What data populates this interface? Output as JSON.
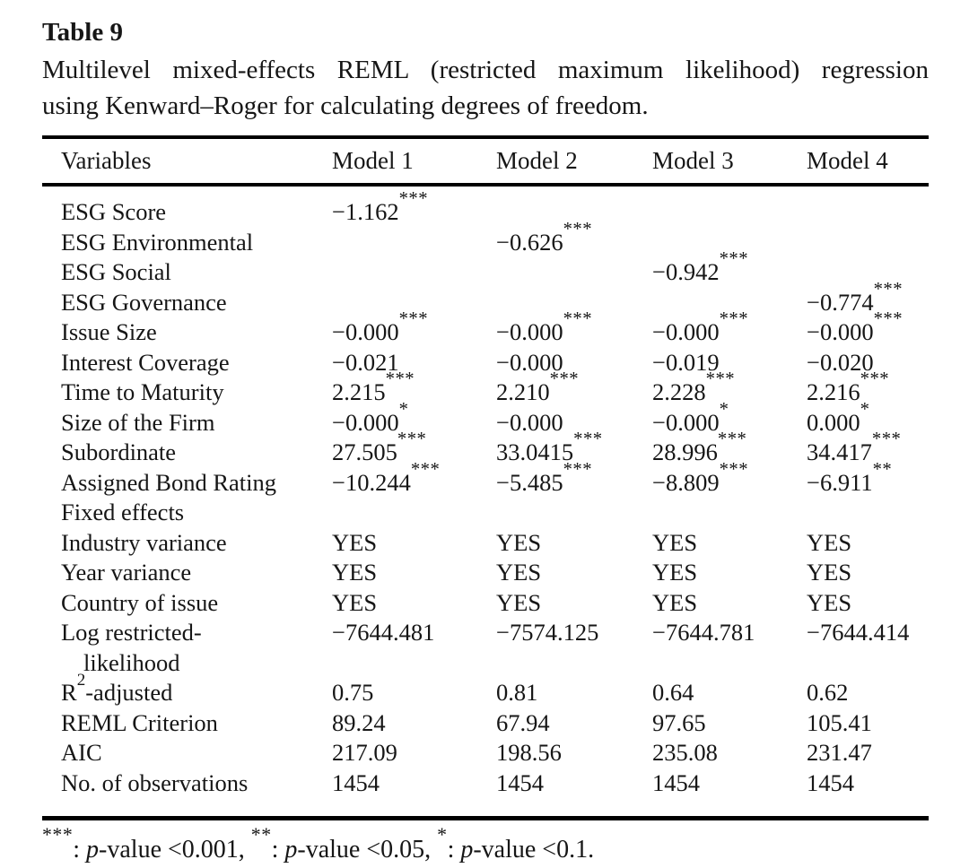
{
  "page": {
    "label": "Table 9",
    "caption_line1": "Multilevel mixed-effects REML (restricted maximum likelihood) regression",
    "caption_line2": "using Kenward–Roger for calculating degrees of freedom."
  },
  "table": {
    "columns": [
      "Variables",
      "Model 1",
      "Model 2",
      "Model 3",
      "Model 4"
    ],
    "rows": [
      {
        "label": "ESG Score",
        "cells": [
          {
            "v": "−1.162",
            "s": "***"
          },
          null,
          null,
          null
        ]
      },
      {
        "label": "ESG Environmental",
        "cells": [
          null,
          {
            "v": "−0.626",
            "s": "***"
          },
          null,
          null
        ]
      },
      {
        "label": "ESG Social",
        "cells": [
          null,
          null,
          {
            "v": "−0.942",
            "s": "***"
          },
          null
        ]
      },
      {
        "label": "ESG Governance",
        "cells": [
          null,
          null,
          null,
          {
            "v": "−0.774",
            "s": "***"
          }
        ]
      },
      {
        "label": "Issue Size",
        "cells": [
          {
            "v": "−0.000",
            "s": "***"
          },
          {
            "v": "−0.000",
            "s": "***"
          },
          {
            "v": "−0.000",
            "s": "***"
          },
          {
            "v": "−0.000",
            "s": "***"
          }
        ]
      },
      {
        "label": "Interest Coverage",
        "cells": [
          {
            "v": "−0.021"
          },
          {
            "v": "−0.000"
          },
          {
            "v": "−0.019"
          },
          {
            "v": "−0.020"
          }
        ]
      },
      {
        "label": "Time to Maturity",
        "cells": [
          {
            "v": "2.215",
            "s": "***"
          },
          {
            "v": "2.210",
            "s": "***"
          },
          {
            "v": "2.228",
            "s": "***"
          },
          {
            "v": "2.216",
            "s": "***"
          }
        ]
      },
      {
        "label": "Size of the Firm",
        "cells": [
          {
            "v": "−0.000",
            "s": "*"
          },
          {
            "v": "−0.000"
          },
          {
            "v": "−0.000",
            "s": "*"
          },
          {
            "v": "0.000",
            "s": "*"
          }
        ]
      },
      {
        "label": "Subordinate",
        "cells": [
          {
            "v": "27.505",
            "s": "***"
          },
          {
            "v": "33.0415",
            "s": "***"
          },
          {
            "v": "28.996",
            "s": "***"
          },
          {
            "v": "34.417",
            "s": "***"
          }
        ]
      },
      {
        "label": "Assigned Bond Rating",
        "cells": [
          {
            "v": "−10.244",
            "s": "***"
          },
          {
            "v": "−5.485",
            "s": "***"
          },
          {
            "v": "−8.809",
            "s": "***"
          },
          {
            "v": "−6.911",
            "s": "**"
          }
        ]
      },
      {
        "label": "Fixed effects",
        "cells": [
          null,
          null,
          null,
          null
        ]
      },
      {
        "label": "Industry variance",
        "cells": [
          {
            "v": "YES"
          },
          {
            "v": "YES"
          },
          {
            "v": "YES"
          },
          {
            "v": "YES"
          }
        ]
      },
      {
        "label": "Year variance",
        "cells": [
          {
            "v": "YES"
          },
          {
            "v": "YES"
          },
          {
            "v": "YES"
          },
          {
            "v": "YES"
          }
        ]
      },
      {
        "label": "Country of issue",
        "cells": [
          {
            "v": "YES"
          },
          {
            "v": "YES"
          },
          {
            "v": "YES"
          },
          {
            "v": "YES"
          }
        ]
      },
      {
        "label": "Log restricted-",
        "label2": "likelihood",
        "cells": [
          {
            "v": "−7644.481"
          },
          {
            "v": "−7574.125"
          },
          {
            "v": "−7644.781"
          },
          {
            "v": "−7644.414"
          }
        ]
      },
      {
        "label_pre": "R",
        "label_sup": "2",
        "label_post": "-adjusted",
        "cells": [
          {
            "v": "0.75"
          },
          {
            "v": "0.81"
          },
          {
            "v": "0.64"
          },
          {
            "v": "0.62"
          }
        ]
      },
      {
        "label": "REML Criterion",
        "cells": [
          {
            "v": "89.24"
          },
          {
            "v": "67.94"
          },
          {
            "v": "97.65"
          },
          {
            "v": "105.41"
          }
        ]
      },
      {
        "label": "AIC",
        "cells": [
          {
            "v": "217.09"
          },
          {
            "v": "198.56"
          },
          {
            "v": "235.08"
          },
          {
            "v": "231.47"
          }
        ]
      },
      {
        "label": "No. of observations",
        "cells": [
          {
            "v": "1454"
          },
          {
            "v": "1454"
          },
          {
            "v": "1454"
          },
          {
            "v": "1454"
          }
        ]
      }
    ],
    "footnote_parts": [
      {
        "stars": "***",
        "p": "p",
        "text": "-value <0.001, "
      },
      {
        "stars": "**",
        "p": "p",
        "text": "-value <0.05, "
      },
      {
        "stars": "*",
        "p": "p",
        "text": "-value <0.1."
      }
    ]
  }
}
